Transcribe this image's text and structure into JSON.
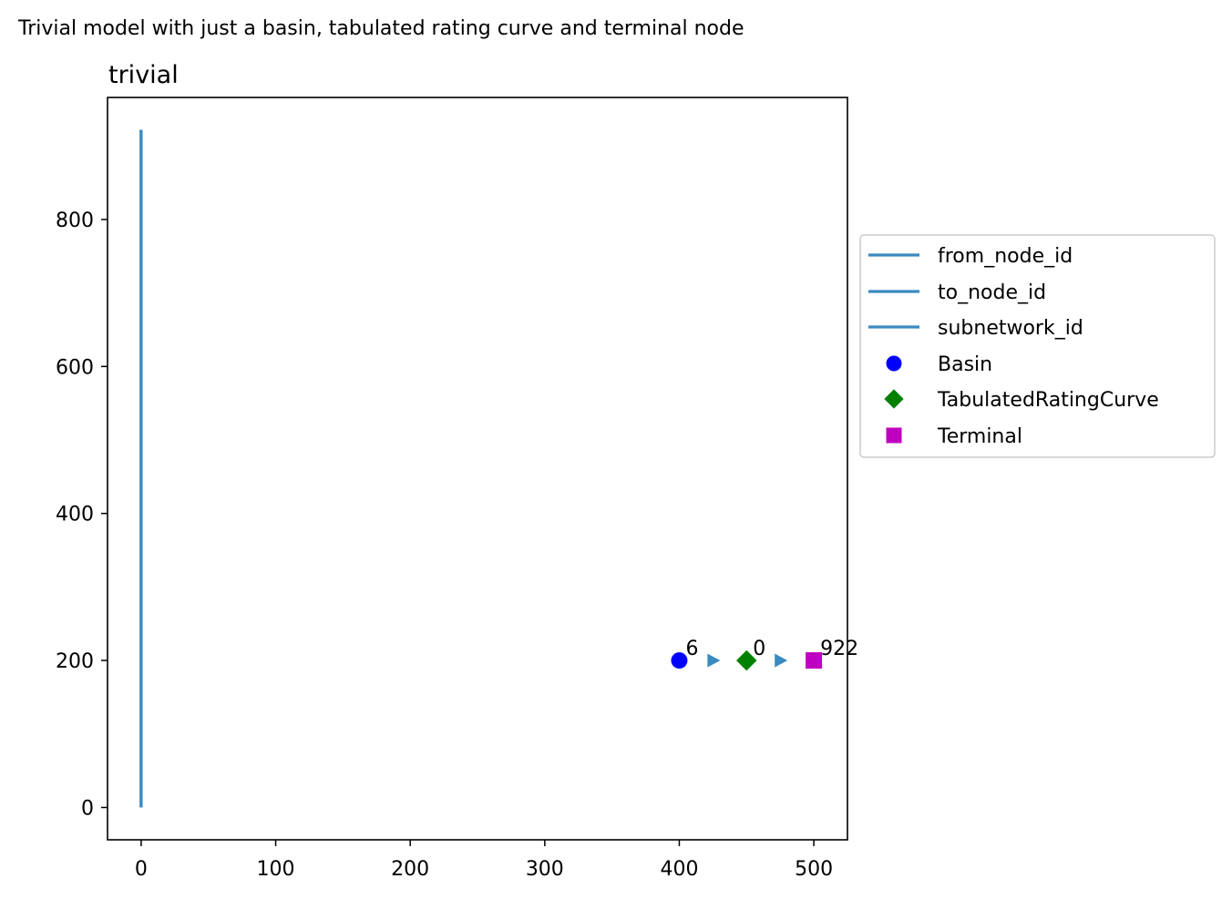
{
  "figure": {
    "suptitle": "Trivial model with just a basin, tabulated rating curve and terminal node"
  },
  "chart_data": {
    "type": "scatter",
    "title": "trivial",
    "xlabel": "",
    "ylabel": "",
    "xlim": [
      -25,
      525
    ],
    "ylim": [
      -44,
      966
    ],
    "xticks": [
      0,
      100,
      200,
      300,
      400,
      500
    ],
    "yticks": [
      0,
      200,
      400,
      600,
      800
    ],
    "grid": false,
    "legend_placement": "center-left outside",
    "lines": [
      {
        "name": "from_node_id",
        "color": "#3a8ac0",
        "x": [
          0,
          0
        ],
        "y": [
          0,
          922
        ]
      },
      {
        "name": "to_node_id",
        "color": "#3a8ac0",
        "x": [
          0,
          0
        ],
        "y": [
          0,
          922
        ]
      },
      {
        "name": "subnetwork_id",
        "color": "#3a8ac0",
        "x": [
          0,
          0
        ],
        "y": [
          0,
          922
        ]
      }
    ],
    "series": [
      {
        "name": "Basin",
        "marker": "circle",
        "color": "#0000ff",
        "points": [
          {
            "x": 400,
            "y": 200,
            "label": "6"
          }
        ]
      },
      {
        "name": "TabulatedRatingCurve",
        "marker": "diamond",
        "color": "#008000",
        "points": [
          {
            "x": 450,
            "y": 200,
            "label": "0"
          }
        ]
      },
      {
        "name": "Terminal",
        "marker": "square",
        "color": "#c000c0",
        "points": [
          {
            "x": 500,
            "y": 200,
            "label": "922"
          }
        ]
      }
    ],
    "arrows": {
      "color": "#3a8ac0",
      "points": [
        {
          "x": 425,
          "y": 200
        },
        {
          "x": 475,
          "y": 200
        }
      ]
    }
  }
}
